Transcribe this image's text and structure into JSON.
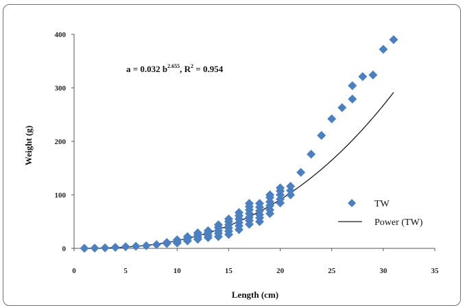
{
  "chart_data": {
    "type": "scatter",
    "xlabel": "Length (cm)",
    "ylabel": "Weight (g)",
    "xlim": [
      0,
      35
    ],
    "ylim": [
      0,
      400
    ],
    "x_ticks": [
      "0",
      "5",
      "10",
      "15",
      "20",
      "25",
      "30",
      "35"
    ],
    "y_ticks": [
      "0",
      "100",
      "200",
      "300",
      "400"
    ],
    "x_tick_values": [
      0,
      5,
      10,
      15,
      20,
      25,
      30,
      35
    ],
    "y_tick_values": [
      0,
      100,
      200,
      300,
      400
    ],
    "grid": false,
    "legend_position": "right",
    "annotation": {
      "before_b": "a = 0.032 b",
      "exponent": "2.655",
      "after_exp": ", R",
      "r_sup": "2",
      "after_r": " = 0.954"
    },
    "series": [
      {
        "name": "TW",
        "marker": "diamond",
        "color": "#4a7fc1",
        "points": [
          [
            1,
            0.1
          ],
          [
            2,
            0.5
          ],
          [
            3,
            1
          ],
          [
            4,
            2
          ],
          [
            5,
            3
          ],
          [
            6,
            4
          ],
          [
            7,
            5
          ],
          [
            8,
            7
          ],
          [
            9,
            9
          ],
          [
            9,
            11
          ],
          [
            10,
            10
          ],
          [
            10,
            13
          ],
          [
            10,
            16
          ],
          [
            11,
            14
          ],
          [
            11,
            18
          ],
          [
            11,
            22
          ],
          [
            12,
            17
          ],
          [
            12,
            21
          ],
          [
            12,
            25
          ],
          [
            12,
            29
          ],
          [
            13,
            20
          ],
          [
            13,
            24
          ],
          [
            13,
            29
          ],
          [
            13,
            33
          ],
          [
            14,
            22
          ],
          [
            14,
            28
          ],
          [
            14,
            33
          ],
          [
            14,
            39
          ],
          [
            14,
            44
          ],
          [
            15,
            26
          ],
          [
            15,
            32
          ],
          [
            15,
            38
          ],
          [
            15,
            44
          ],
          [
            15,
            50
          ],
          [
            15,
            55
          ],
          [
            16,
            35
          ],
          [
            16,
            42
          ],
          [
            16,
            48
          ],
          [
            16,
            55
          ],
          [
            16,
            61
          ],
          [
            16,
            67
          ],
          [
            17,
            45
          ],
          [
            17,
            52
          ],
          [
            17,
            58
          ],
          [
            17,
            65
          ],
          [
            17,
            72
          ],
          [
            17,
            78
          ],
          [
            17,
            84
          ],
          [
            18,
            50
          ],
          [
            18,
            57
          ],
          [
            18,
            63
          ],
          [
            18,
            70
          ],
          [
            18,
            77
          ],
          [
            18,
            84
          ],
          [
            19,
            65
          ],
          [
            19,
            72
          ],
          [
            19,
            80
          ],
          [
            19,
            87
          ],
          [
            19,
            95
          ],
          [
            19,
            100
          ],
          [
            20,
            85
          ],
          [
            20,
            92
          ],
          [
            20,
            100
          ],
          [
            20,
            107
          ],
          [
            20,
            113
          ],
          [
            21,
            100
          ],
          [
            21,
            108
          ],
          [
            21,
            116
          ],
          [
            22,
            142
          ],
          [
            23,
            176
          ],
          [
            24,
            211
          ],
          [
            25,
            242
          ],
          [
            26,
            263
          ],
          [
            27,
            279
          ],
          [
            27,
            304
          ],
          [
            28,
            321
          ],
          [
            29,
            324
          ],
          [
            30,
            372
          ],
          [
            31,
            390
          ]
        ]
      },
      {
        "name": "Power (TW)",
        "type": "line",
        "color": "#1a1a1a",
        "equation": {
          "a": 0.032,
          "b": 2.655
        },
        "x_range": [
          1,
          31
        ]
      }
    ]
  }
}
